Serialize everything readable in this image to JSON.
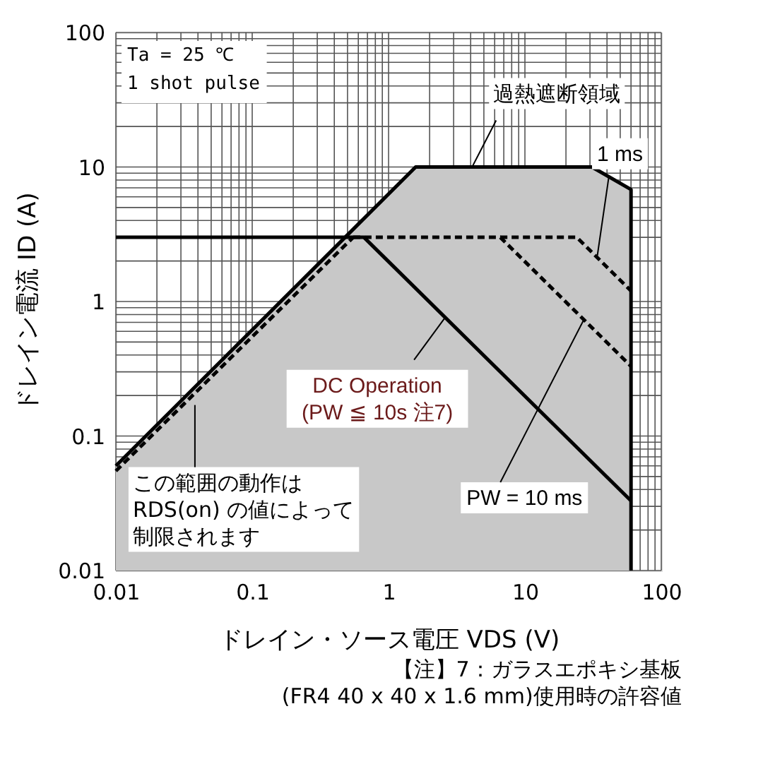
{
  "chart_data": {
    "type": "line",
    "xlabel": "ドレイン・ソース電圧  VDS (V)",
    "ylabel": "ドレイン電流  ID (A)",
    "log": "xy",
    "xlim": [
      0.01,
      100
    ],
    "ylim": [
      0.01,
      100
    ],
    "xticks": [
      0.01,
      0.1,
      1,
      10,
      100
    ],
    "yticks": [
      0.01,
      0.1,
      1,
      10,
      100
    ],
    "grid": true,
    "series": [
      {
        "type": "area",
        "color": "#c8c8c8",
        "x": [
          0.01,
          1.58,
          31,
          60,
          60
        ],
        "values": [
          0.06,
          10,
          10,
          6.8,
          0.01
        ]
      },
      {
        "color": "#000000",
        "line_style": "dashed",
        "x": [
          0.01,
          0.55
        ],
        "values": [
          0.055,
          3.0
        ]
      },
      {
        "color": "#000000",
        "line_style": "solid",
        "x": [
          0.01,
          0.66,
          60
        ],
        "values": [
          3,
          3,
          0.033
        ]
      },
      {
        "color": "#000000",
        "line_style": "dashed",
        "x": [
          0.55,
          6.6,
          60
        ],
        "values": [
          3,
          3,
          0.33
        ]
      },
      {
        "color": "#000000",
        "line_style": "dashed",
        "x": [
          6.6,
          24,
          60
        ],
        "values": [
          3,
          3,
          1.2
        ]
      }
    ],
    "annotations": [
      "Ta = 25 ℃\n1 shot pulse",
      {
        "text": "過熱遮断領域",
        "x": 4.1,
        "y": 10
      },
      {
        "text": "1 ms",
        "x": 34,
        "y": 2.2
      },
      {
        "text": "DC Operation\n(PW ≦ 10s 注7)",
        "x": 2.6,
        "y": 0.76
      },
      {
        "text": "PW = 10 ms",
        "x": 27,
        "y": 0.73
      },
      {
        "text": "この範囲の動作はRDS(on) の値によって制限されます",
        "x": 0.038,
        "y": 0.17
      },
      "【注】7：ガラスエポキシ基板\n(FR4 40 x 40 x 1.6 mm)使用時の許容値"
    ]
  }
}
